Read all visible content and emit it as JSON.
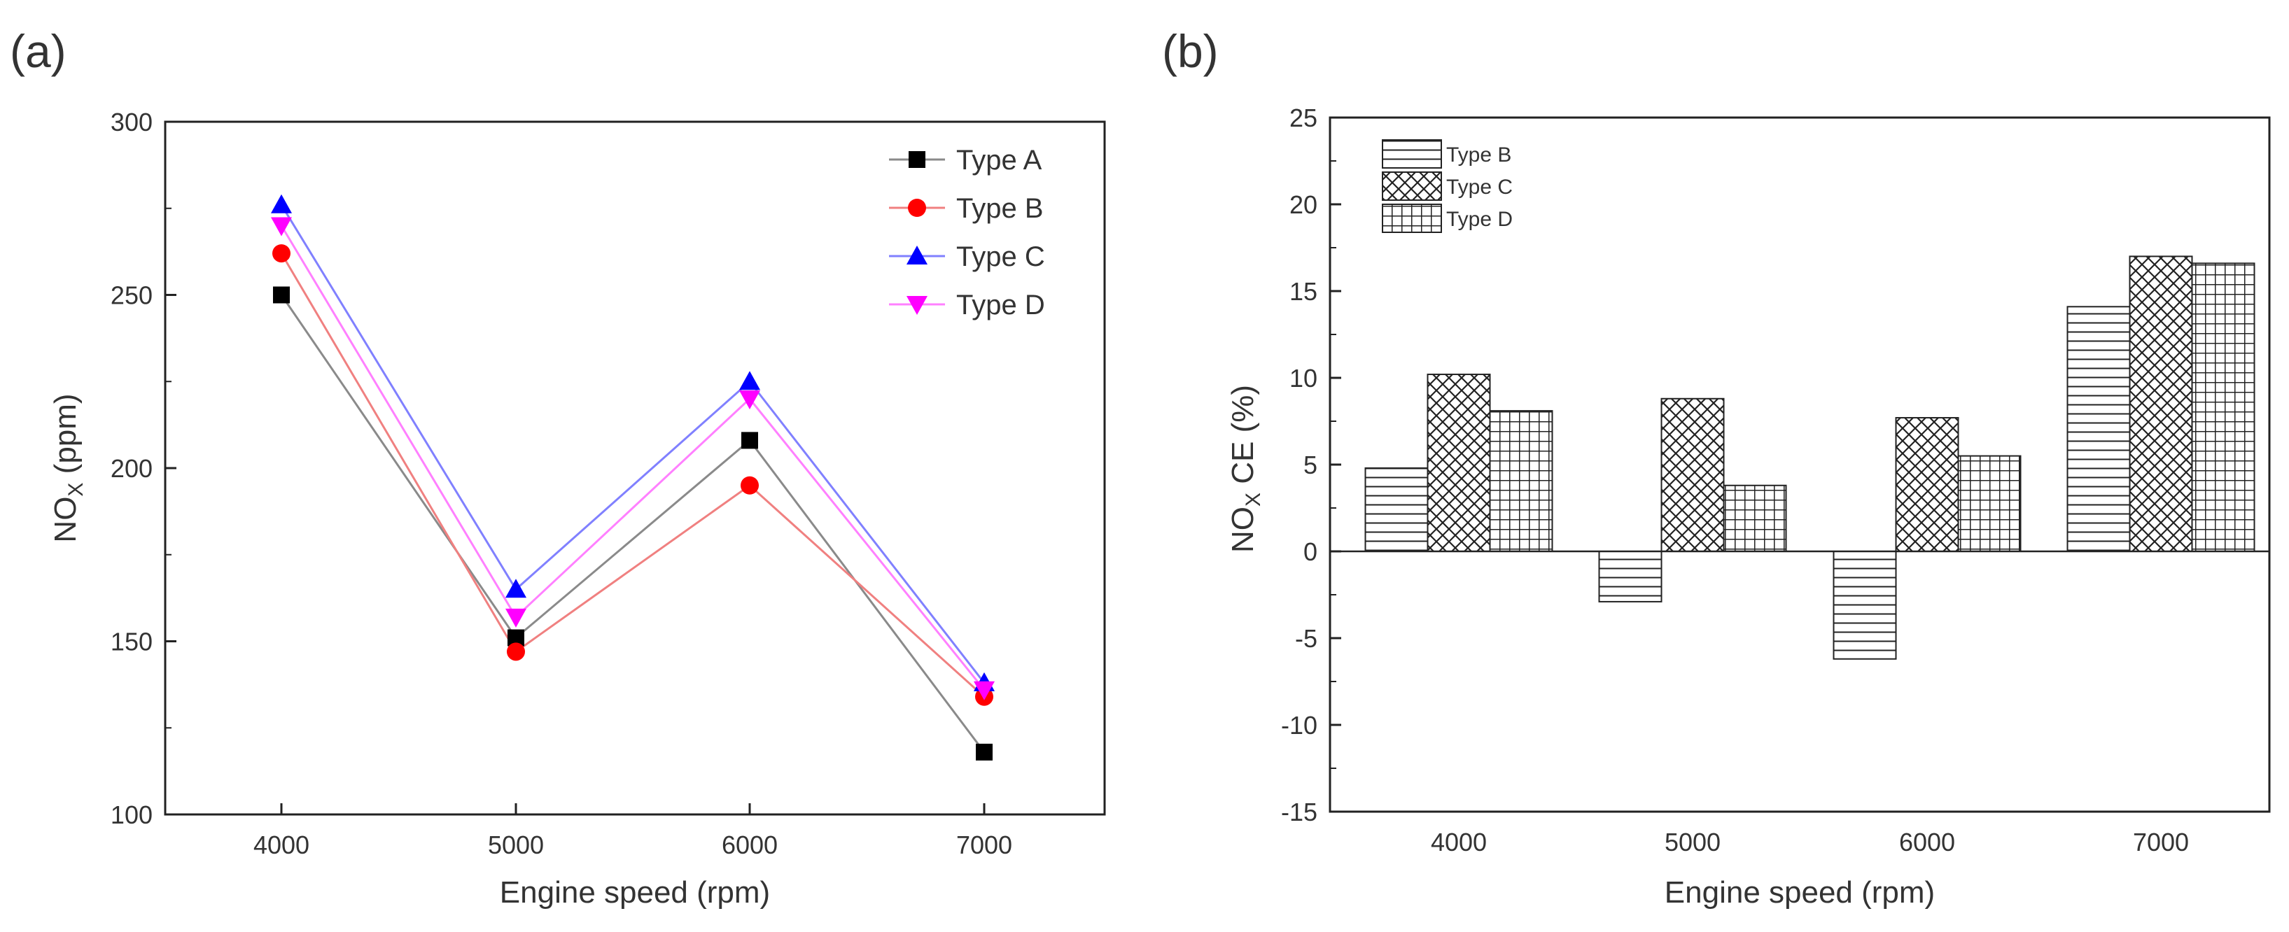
{
  "chart_data": [
    {
      "panel_label": "(a)",
      "type": "line",
      "xlabel": "Engine speed (rpm)",
      "ylabel_main": "NO",
      "ylabel_sub": "X",
      "ylabel_tail": " (ppm)",
      "categories": [
        "4000",
        "5000",
        "6000",
        "7000"
      ],
      "yticks": [
        "100",
        "150",
        "200",
        "250",
        "300"
      ],
      "ylim": [
        100,
        300
      ],
      "grid": false,
      "legend_position": "top-right",
      "series": [
        {
          "name": "Type A",
          "color": "#000000",
          "line_color": "#8a8a8a",
          "marker": "square",
          "values": [
            250,
            151,
            208,
            118
          ]
        },
        {
          "name": "Type B",
          "color": "#ff0000",
          "line_color": "#f08080",
          "marker": "circle",
          "values": [
            262,
            147,
            195,
            134
          ]
        },
        {
          "name": "Type C",
          "color": "#0000ff",
          "line_color": "#8080ff",
          "marker": "triangle-up",
          "values": [
            276,
            165,
            225,
            138
          ]
        },
        {
          "name": "Type D",
          "color": "#ff00ff",
          "line_color": "#ff80ff",
          "marker": "triangle-down",
          "values": [
            270,
            157,
            220,
            136
          ]
        }
      ]
    },
    {
      "panel_label": "(b)",
      "type": "bar",
      "xlabel": "Engine speed (rpm)",
      "ylabel_main": "NO",
      "ylabel_sub": "X",
      "ylabel_tail": " CE (%)",
      "categories": [
        "4000",
        "5000",
        "6000",
        "7000"
      ],
      "yticks": [
        "-15",
        "-10",
        "-5",
        "0",
        "5",
        "10",
        "15",
        "20",
        "25"
      ],
      "ylim": [
        -15,
        25
      ],
      "grid": false,
      "legend_position": "top-left",
      "series": [
        {
          "name": "Type B",
          "pattern": "horizontal-lines",
          "values": [
            4.8,
            -2.9,
            -6.2,
            14.1
          ]
        },
        {
          "name": "Type C",
          "pattern": "diagonal-crosshatch",
          "values": [
            10.2,
            8.8,
            7.7,
            17.0
          ]
        },
        {
          "name": "Type D",
          "pattern": "square-grid",
          "values": [
            8.1,
            3.8,
            5.5,
            16.6
          ]
        }
      ]
    }
  ]
}
